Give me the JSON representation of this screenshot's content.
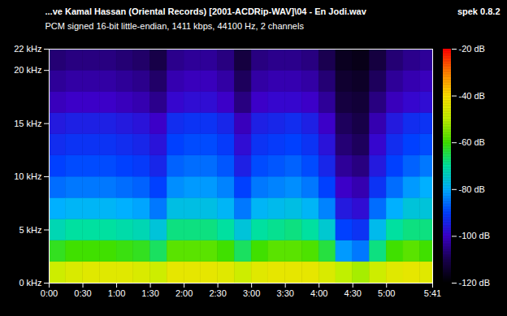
{
  "chart_data": {
    "type": "heatmap",
    "title": "...ve Kamal Hassan (Oriental Records) [2001-ACDRip-WAV]\\04 - En Jodi.wav",
    "subtitle": "PCM signed 16-bit little-endian, 1411 kbps, 44100 Hz, 2 channels",
    "annotations": [
      "spek 0.8.2"
    ],
    "xlim": [
      0,
      341
    ],
    "xticks": [
      {
        "value": 0,
        "label": "0:00"
      },
      {
        "value": 30,
        "label": "0:30"
      },
      {
        "value": 60,
        "label": "1:00"
      },
      {
        "value": 90,
        "label": "1:30"
      },
      {
        "value": 120,
        "label": "2:00"
      },
      {
        "value": 150,
        "label": "2:30"
      },
      {
        "value": 180,
        "label": "3:00"
      },
      {
        "value": 210,
        "label": "3:30"
      },
      {
        "value": 240,
        "label": "4:00"
      },
      {
        "value": 270,
        "label": "4:30"
      },
      {
        "value": 300,
        "label": "5:00"
      },
      {
        "value": 341,
        "label": "5:41"
      }
    ],
    "ylim": [
      0,
      22
    ],
    "yticks": [
      {
        "value": 0,
        "label": "0 kHz"
      },
      {
        "value": 5,
        "label": "5 kHz"
      },
      {
        "value": 10,
        "label": "10 kHz"
      },
      {
        "value": 15,
        "label": "15 kHz"
      },
      {
        "value": 20,
        "label": "20 kHz"
      },
      {
        "value": 22,
        "label": "22 kHz"
      }
    ],
    "time_bins": [
      0,
      15,
      30,
      45,
      60,
      75,
      90,
      105,
      120,
      135,
      150,
      165,
      180,
      195,
      210,
      225,
      240,
      255,
      270,
      285,
      300,
      315,
      330,
      341
    ],
    "freq_bins": [
      0,
      2,
      4,
      6,
      8,
      10,
      12,
      14,
      16,
      18,
      20,
      22
    ],
    "values": [
      [
        -48,
        -46,
        -45,
        -45,
        -45,
        -46,
        -48,
        -44,
        -44,
        -44,
        -45,
        -48,
        -45,
        -44,
        -44,
        -44,
        -46,
        -50,
        -52,
        -48,
        -45,
        -44,
        -45
      ],
      [
        -62,
        -60,
        -60,
        -60,
        -61,
        -62,
        -66,
        -58,
        -58,
        -58,
        -60,
        -66,
        -60,
        -58,
        -58,
        -59,
        -64,
        -82,
        -85,
        -68,
        -60,
        -58,
        -60
      ],
      [
        -72,
        -70,
        -70,
        -70,
        -71,
        -72,
        -76,
        -68,
        -68,
        -68,
        -70,
        -76,
        -70,
        -69,
        -68,
        -70,
        -75,
        -90,
        -92,
        -78,
        -70,
        -68,
        -68
      ],
      [
        -80,
        -79,
        -79,
        -79,
        -80,
        -81,
        -85,
        -77,
        -77,
        -77,
        -79,
        -85,
        -79,
        -78,
        -77,
        -79,
        -84,
        -96,
        -98,
        -86,
        -80,
        -76,
        -76
      ],
      [
        -86,
        -85,
        -85,
        -85,
        -86,
        -87,
        -90,
        -83,
        -82,
        -82,
        -84,
        -90,
        -85,
        -84,
        -83,
        -85,
        -90,
        -100,
        -102,
        -92,
        -86,
        -82,
        -80
      ],
      [
        -90,
        -89,
        -89,
        -89,
        -90,
        -91,
        -94,
        -87,
        -86,
        -86,
        -88,
        -95,
        -89,
        -88,
        -87,
        -89,
        -94,
        -104,
        -106,
        -96,
        -90,
        -87,
        -85
      ],
      [
        -93,
        -92,
        -92,
        -92,
        -93,
        -94,
        -97,
        -90,
        -89,
        -89,
        -91,
        -98,
        -92,
        -91,
        -90,
        -92,
        -97,
        -107,
        -109,
        -99,
        -93,
        -90,
        -89
      ],
      [
        -96,
        -95,
        -95,
        -95,
        -96,
        -97,
        -100,
        -93,
        -92,
        -92,
        -94,
        -101,
        -95,
        -94,
        -93,
        -95,
        -100,
        -109,
        -111,
        -102,
        -96,
        -93,
        -92
      ],
      [
        -101,
        -100,
        -100,
        -100,
        -101,
        -102,
        -105,
        -99,
        -98,
        -98,
        -100,
        -106,
        -100,
        -99,
        -99,
        -100,
        -104,
        -112,
        -113,
        -106,
        -101,
        -99,
        -98
      ],
      [
        -104,
        -103,
        -103,
        -103,
        -104,
        -105,
        -108,
        -102,
        -101,
        -101,
        -103,
        -109,
        -103,
        -102,
        -102,
        -103,
        -107,
        -114,
        -115,
        -109,
        -104,
        -102,
        -101
      ],
      [
        -107,
        -106,
        -106,
        -106,
        -107,
        -108,
        -111,
        -105,
        -104,
        -104,
        -106,
        -112,
        -106,
        -105,
        -105,
        -106,
        -110,
        -116,
        -117,
        -112,
        -107,
        -105,
        -104
      ]
    ],
    "colorbar": {
      "range": [
        -120,
        -20
      ],
      "ticks": [
        {
          "value": -20,
          "label": "-20 dB"
        },
        {
          "value": -40,
          "label": "-40 dB"
        },
        {
          "value": -60,
          "label": "-60 dB"
        },
        {
          "value": -80,
          "label": "-80 dB"
        },
        {
          "value": -100,
          "label": "-100 dB"
        },
        {
          "value": -120,
          "label": "-120 dB"
        }
      ]
    }
  }
}
